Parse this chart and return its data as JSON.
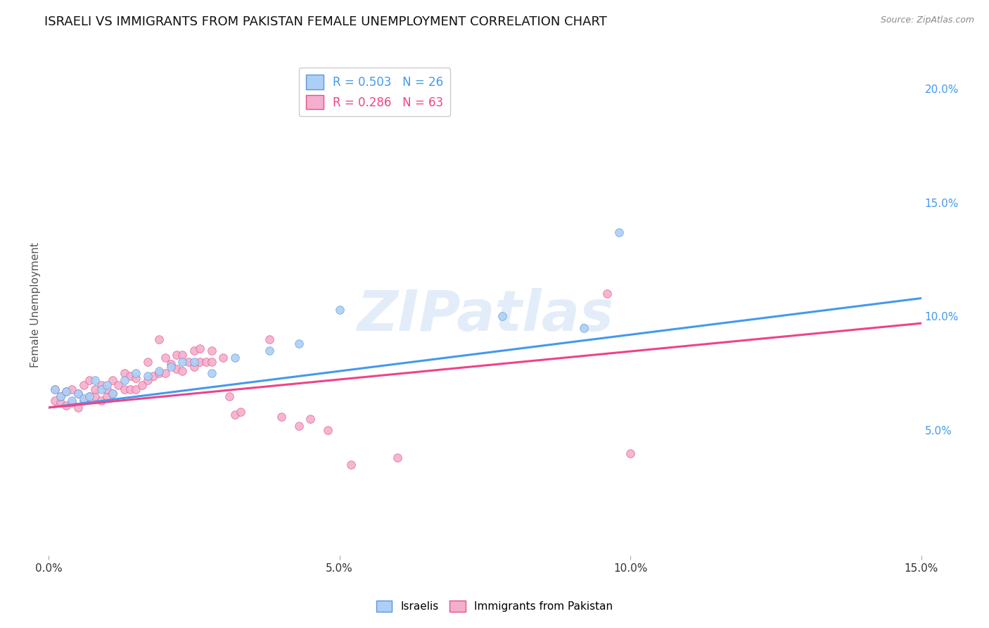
{
  "title": "ISRAELI VS IMMIGRANTS FROM PAKISTAN FEMALE UNEMPLOYMENT CORRELATION CHART",
  "source": "Source: ZipAtlas.com",
  "ylabel": "Female Unemployment",
  "watermark": "ZIPatlas",
  "xlim": [
    0.0,
    0.15
  ],
  "ylim": [
    -0.005,
    0.215
  ],
  "xticks": [
    0.0,
    0.05,
    0.1,
    0.15
  ],
  "yticks_right": [
    0.05,
    0.1,
    0.15,
    0.2
  ],
  "ytick_labels_right": [
    "5.0%",
    "10.0%",
    "15.0%",
    "20.0%"
  ],
  "xtick_labels": [
    "0.0%",
    "5.0%",
    "10.0%",
    "15.0%"
  ],
  "legend_entries": [
    {
      "label": "R = 0.503   N = 26",
      "color": "#aecff5"
    },
    {
      "label": "R = 0.286   N = 63",
      "color": "#f5aece"
    }
  ],
  "series_israelis": {
    "color": "#aecff5",
    "edge_color": "#5599dd",
    "x": [
      0.001,
      0.002,
      0.003,
      0.004,
      0.005,
      0.006,
      0.007,
      0.008,
      0.009,
      0.01,
      0.011,
      0.013,
      0.015,
      0.017,
      0.019,
      0.021,
      0.023,
      0.025,
      0.028,
      0.032,
      0.038,
      0.043,
      0.05,
      0.078,
      0.092,
      0.098
    ],
    "y": [
      0.068,
      0.065,
      0.067,
      0.063,
      0.066,
      0.064,
      0.065,
      0.072,
      0.068,
      0.07,
      0.066,
      0.072,
      0.075,
      0.074,
      0.076,
      0.078,
      0.08,
      0.08,
      0.075,
      0.082,
      0.085,
      0.088,
      0.103,
      0.1,
      0.095,
      0.137
    ]
  },
  "series_pakistan": {
    "color": "#f5aece",
    "edge_color": "#dd5588",
    "x": [
      0.001,
      0.001,
      0.002,
      0.002,
      0.003,
      0.003,
      0.004,
      0.004,
      0.005,
      0.005,
      0.006,
      0.006,
      0.007,
      0.007,
      0.008,
      0.008,
      0.009,
      0.009,
      0.01,
      0.01,
      0.011,
      0.011,
      0.012,
      0.013,
      0.013,
      0.014,
      0.014,
      0.015,
      0.015,
      0.016,
      0.017,
      0.017,
      0.018,
      0.019,
      0.019,
      0.02,
      0.02,
      0.021,
      0.022,
      0.022,
      0.023,
      0.023,
      0.024,
      0.025,
      0.025,
      0.026,
      0.026,
      0.027,
      0.028,
      0.028,
      0.03,
      0.031,
      0.032,
      0.033,
      0.038,
      0.04,
      0.043,
      0.045,
      0.048,
      0.052,
      0.06,
      0.096,
      0.1
    ],
    "y": [
      0.063,
      0.068,
      0.062,
      0.065,
      0.061,
      0.067,
      0.062,
      0.068,
      0.06,
      0.066,
      0.063,
      0.07,
      0.065,
      0.072,
      0.065,
      0.068,
      0.063,
      0.07,
      0.065,
      0.068,
      0.066,
      0.072,
      0.07,
      0.068,
      0.075,
      0.068,
      0.074,
      0.068,
      0.073,
      0.07,
      0.072,
      0.08,
      0.074,
      0.075,
      0.09,
      0.075,
      0.082,
      0.079,
      0.077,
      0.083,
      0.076,
      0.083,
      0.08,
      0.078,
      0.085,
      0.08,
      0.086,
      0.08,
      0.08,
      0.085,
      0.082,
      0.065,
      0.057,
      0.058,
      0.09,
      0.056,
      0.052,
      0.055,
      0.05,
      0.035,
      0.038,
      0.11,
      0.04
    ]
  },
  "line_israelis": {
    "color": "#4499ee",
    "x_start": 0.0,
    "x_end": 0.15,
    "y_start": 0.06,
    "y_end": 0.108
  },
  "line_pakistan": {
    "color": "#ee4488",
    "x_start": 0.0,
    "x_end": 0.15,
    "y_start": 0.06,
    "y_end": 0.097
  },
  "background_color": "#ffffff",
  "grid_color": "#dddddd",
  "title_fontsize": 13,
  "axis_label_fontsize": 11,
  "tick_fontsize": 11,
  "marker_size": 70
}
